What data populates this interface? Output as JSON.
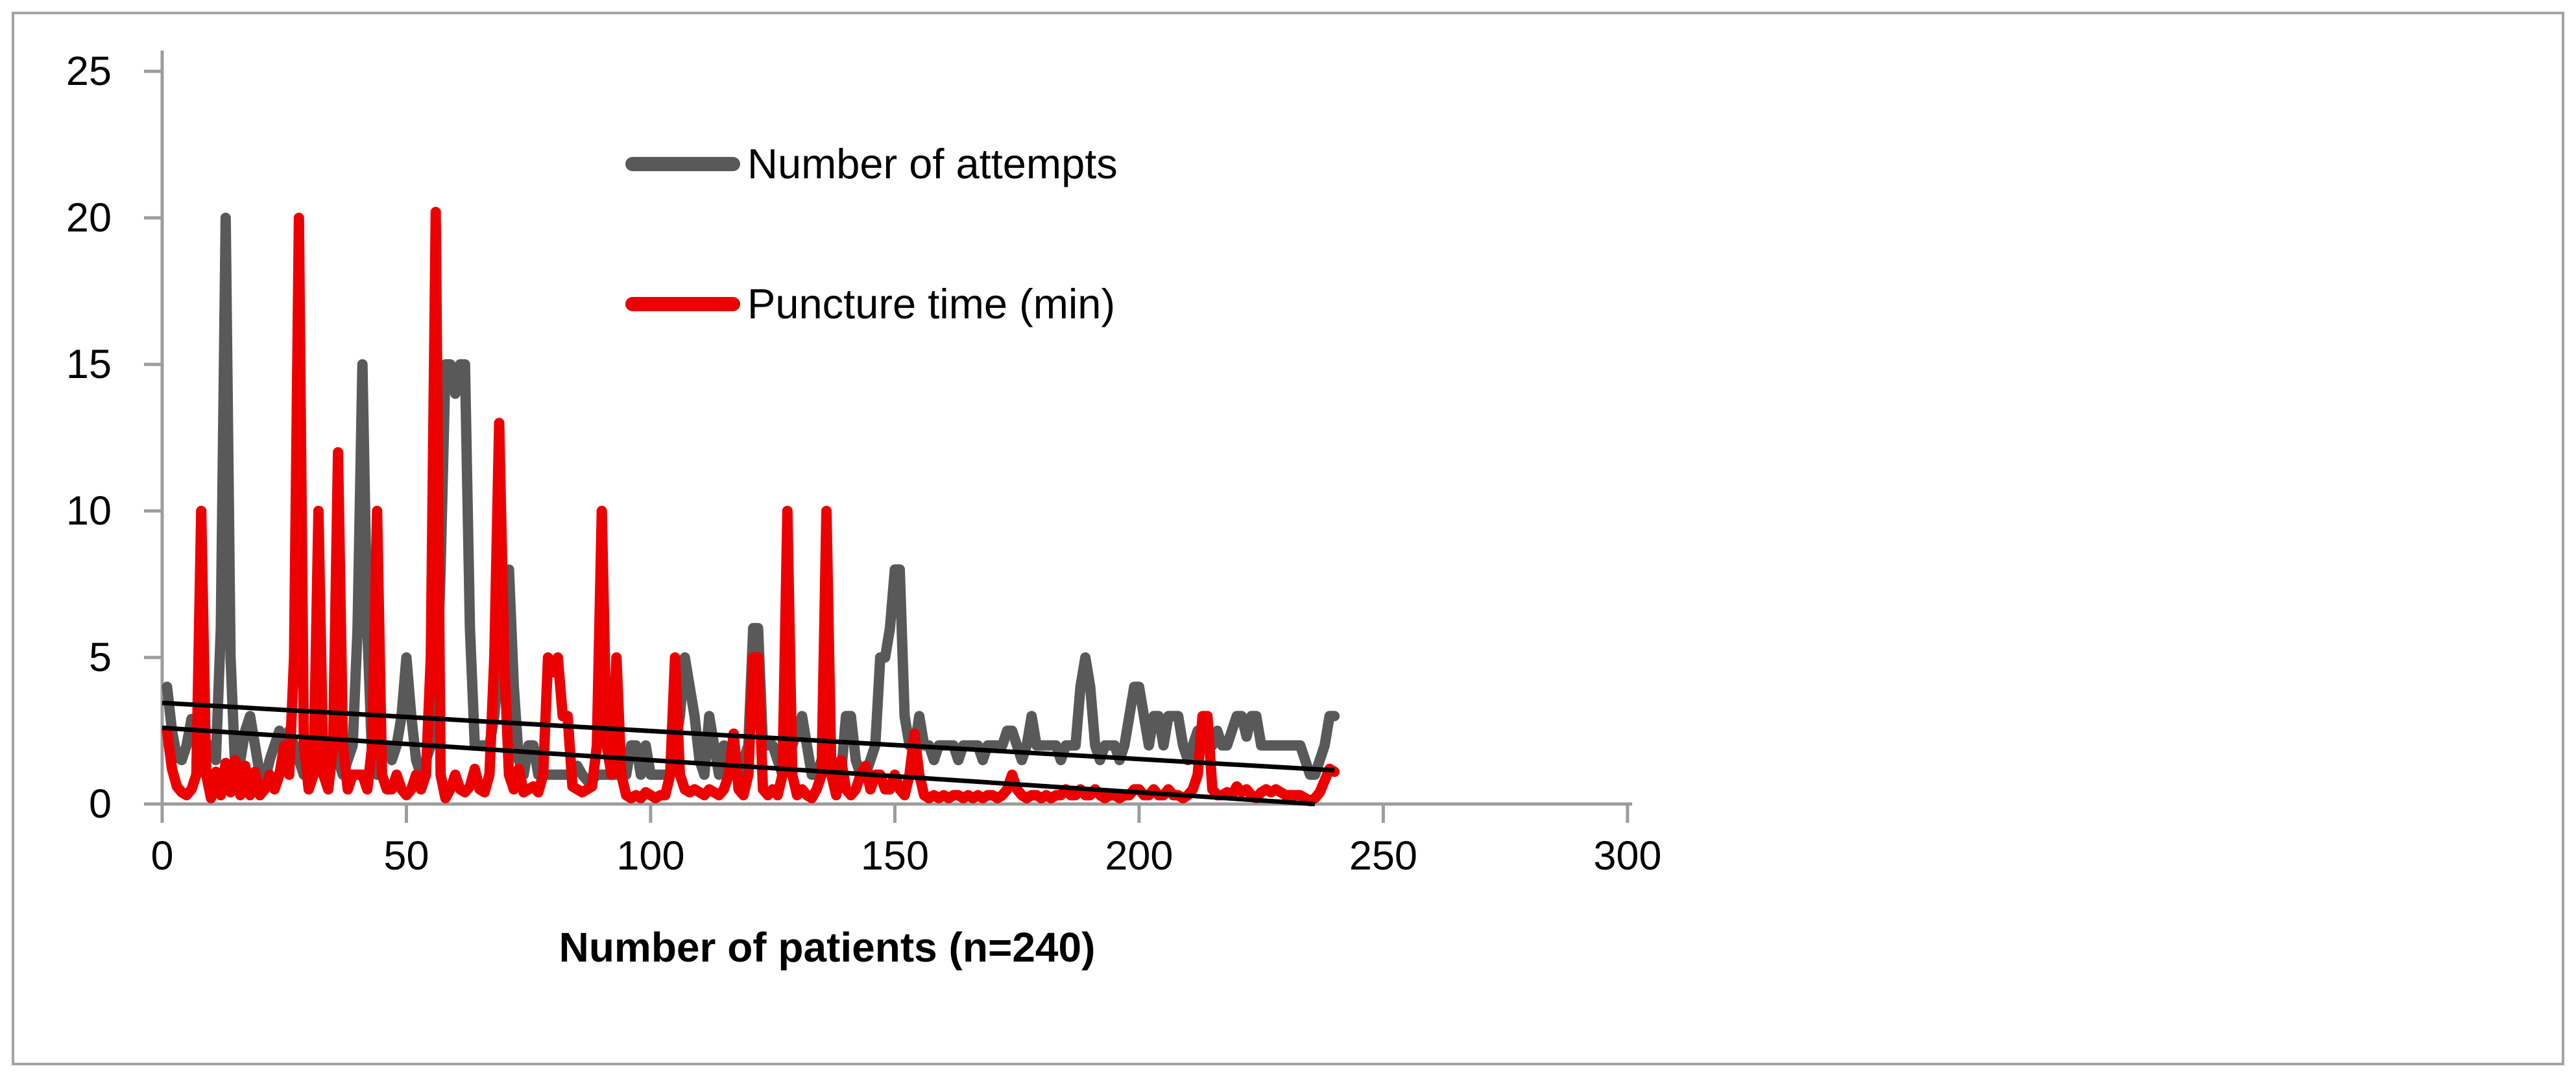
{
  "chart_data": {
    "type": "line",
    "title": "",
    "xlabel": "Number of patients (n=240)",
    "ylabel": "",
    "xlim": [
      0,
      300
    ],
    "ylim": [
      0,
      25
    ],
    "grid": false,
    "legend_position": "inside-top-left",
    "x_ticks": [
      "0",
      "50",
      "100",
      "150",
      "200",
      "250",
      "300"
    ],
    "x_tick_values": [
      0,
      50,
      100,
      150,
      200,
      250,
      300
    ],
    "y_ticks": [
      "25",
      "20",
      "15",
      "10",
      "5",
      "0"
    ],
    "y_tick_values": [
      25,
      20,
      15,
      10,
      5,
      0
    ],
    "axis_color": "#9c9c9c",
    "border_color": "#a3a3a3",
    "x_start": 1,
    "series": [
      {
        "name": "Number of attempts",
        "color": "#595959",
        "values": [
          4,
          2.5,
          1.6,
          1.5,
          2,
          2.9,
          2.5,
          1.2,
          1.5,
          2,
          1.5,
          6,
          20,
          5,
          1,
          1.5,
          2.5,
          3,
          2,
          1,
          0.8,
          1.5,
          2,
          2.5,
          2,
          2.5,
          2,
          1.5,
          1,
          1.5,
          2,
          1.5,
          1,
          1.5,
          2,
          1.5,
          1,
          1.5,
          2,
          6,
          15,
          6,
          1.5,
          1,
          2,
          2,
          1.5,
          2,
          3,
          5,
          3,
          1.5,
          1,
          1.5,
          2,
          3,
          8,
          15,
          15,
          14,
          15,
          15,
          6,
          2,
          2,
          2,
          2,
          3,
          5,
          7,
          8,
          4,
          1.5,
          1,
          2,
          2,
          1,
          1,
          1,
          1,
          1,
          1,
          1,
          1,
          1.3,
          1,
          0.8,
          0.8,
          1,
          1,
          1,
          1,
          1,
          1,
          1,
          2,
          2,
          1,
          2,
          1,
          1,
          1,
          1,
          1,
          2,
          3,
          5,
          4,
          3,
          1.5,
          1,
          3,
          2,
          1,
          2,
          1.5,
          1,
          1,
          1.5,
          2,
          6,
          6,
          2,
          2,
          2,
          1.5,
          1,
          1.5,
          2,
          2.5,
          3,
          2,
          1,
          1,
          1.5,
          1.5,
          1,
          1,
          1,
          3,
          3,
          1.5,
          1,
          1,
          1.5,
          2,
          5,
          5,
          6,
          8,
          8,
          3,
          2,
          1.9,
          3,
          2,
          2,
          1.5,
          2,
          2,
          2,
          2,
          1.5,
          2,
          2,
          2,
          2,
          1.5,
          2,
          2,
          2,
          2,
          2.5,
          2.5,
          2,
          1.5,
          2,
          3,
          2,
          2,
          2,
          2,
          2,
          1.5,
          2,
          2,
          2,
          4,
          5,
          4,
          2,
          1.5,
          2,
          2,
          2,
          1.5,
          2,
          3,
          4,
          4,
          3,
          2,
          3,
          3,
          2,
          3,
          3,
          3,
          2,
          1.5,
          2,
          2.5,
          2,
          2,
          2,
          2.5,
          2,
          2,
          2.5,
          3,
          3,
          2.3,
          3,
          3,
          2,
          2,
          2,
          2,
          2,
          2,
          2,
          2,
          2,
          1.5,
          1,
          1,
          1.5,
          2,
          3,
          3
        ]
      },
      {
        "name": "Puncture time (min)",
        "color": "#ec0000",
        "values": [
          2.5,
          1.2,
          0.6,
          0.4,
          0.3,
          0.5,
          1,
          10,
          1,
          0.2,
          1.1,
          0.3,
          1.4,
          0.4,
          1.5,
          0.3,
          1.3,
          0.3,
          1.1,
          0.3,
          0.5,
          1,
          0.5,
          1,
          2,
          1,
          5,
          20,
          2,
          0.5,
          1,
          10,
          1,
          0.5,
          2,
          12,
          2,
          0.5,
          1,
          1,
          1,
          0.5,
          2,
          10,
          1,
          0.5,
          0.5,
          1,
          0.5,
          0.3,
          0.5,
          1,
          0.5,
          1,
          5,
          20.2,
          1,
          0.2,
          0.5,
          1,
          0.5,
          0.4,
          0.6,
          1.2,
          0.5,
          0.4,
          1,
          5,
          13,
          5,
          1,
          0.5,
          1.2,
          0.4,
          0.5,
          0.6,
          0.4,
          1,
          5,
          4.5,
          5,
          3,
          3,
          0.6,
          0.5,
          0.4,
          0.5,
          0.6,
          2,
          10,
          2,
          1,
          5,
          1,
          0.3,
          0.2,
          0.3,
          0.2,
          0.4,
          0.3,
          0.2,
          0.3,
          0.3,
          1,
          5,
          1,
          0.5,
          0.4,
          0.5,
          0.4,
          0.3,
          0.5,
          0.4,
          0.3,
          0.5,
          1,
          2.4,
          0.5,
          0.3,
          1,
          5,
          5,
          0.5,
          0.3,
          0.5,
          0.3,
          1,
          10,
          1,
          0.3,
          0.5,
          0.3,
          0.2,
          0.5,
          1,
          10,
          1,
          0.3,
          1.5,
          0.5,
          0.3,
          0.5,
          1,
          1.3,
          0.5,
          1,
          1,
          0.5,
          0.5,
          1,
          0.5,
          0.3,
          1,
          2.4,
          1,
          0.3,
          0.2,
          0.3,
          0.2,
          0.3,
          0.2,
          0.3,
          0.3,
          0.2,
          0.3,
          0.2,
          0.3,
          0.2,
          0.3,
          0.3,
          0.2,
          0.3,
          0.5,
          1,
          0.5,
          0.3,
          0.2,
          0.3,
          0.3,
          0.2,
          0.3,
          0.2,
          0.3,
          0.3,
          0.5,
          0.3,
          0.3,
          0.5,
          0.3,
          0.3,
          0.5,
          0.3,
          0.2,
          0.3,
          0.3,
          0.2,
          0.3,
          0.3,
          0.5,
          0.5,
          0.3,
          0.3,
          0.5,
          0.3,
          0.3,
          0.5,
          0.3,
          0.3,
          0.2,
          0.3,
          0.5,
          1,
          3,
          3,
          0.5,
          0.3,
          0.3,
          0.4,
          0.3,
          0.6,
          0.4,
          0.5,
          0.3,
          0.2,
          0.4,
          0.5,
          0.4,
          0.5,
          0.4,
          0.3,
          0.3,
          0.3,
          0.3,
          0.2,
          0.1,
          0.2,
          0.4,
          0.8,
          1.2,
          1.1
        ]
      }
    ],
    "trendlines": [
      {
        "series": "Number of attempts",
        "color": "#000000",
        "x_start": 0,
        "y_start": 3.45,
        "x_end": 240,
        "y_end": 1.15
      },
      {
        "series": "Puncture time (min)",
        "color": "#000000",
        "x_start": 0,
        "y_start": 2.6,
        "x_end": 236,
        "y_end": 0
      }
    ]
  }
}
